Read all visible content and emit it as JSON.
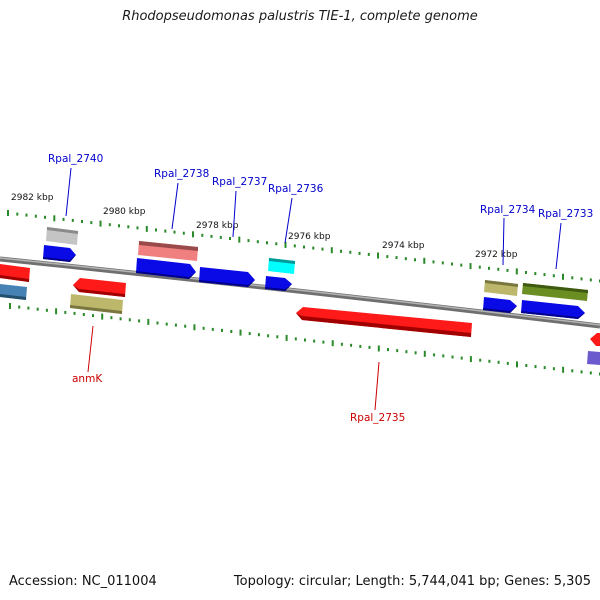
{
  "title": "Rhodopseudomonas palustris TIE-1, complete genome",
  "footer": {
    "accession": "Accession: NC_011004",
    "topology": "Topology: circular; Length: 5,744,041 bp; Genes: 5,305"
  },
  "colors": {
    "forward_label": "#0000cc",
    "reverse_label": "#cc0000",
    "backbone": "#888888",
    "tick": "#2a8a2a"
  },
  "kbp_labels": [
    "2982 kbp",
    "2980 kbp",
    "2978 kbp",
    "2976 kbp",
    "2974 kbp",
    "2972 kbp"
  ],
  "gene_labels": [
    "Rpal_2740",
    "Rpal_2738",
    "Rpal_2737",
    "Rpal_2736",
    "Rpal_2734",
    "Rpal_2733",
    "anmK",
    "Rpal_2735"
  ]
}
